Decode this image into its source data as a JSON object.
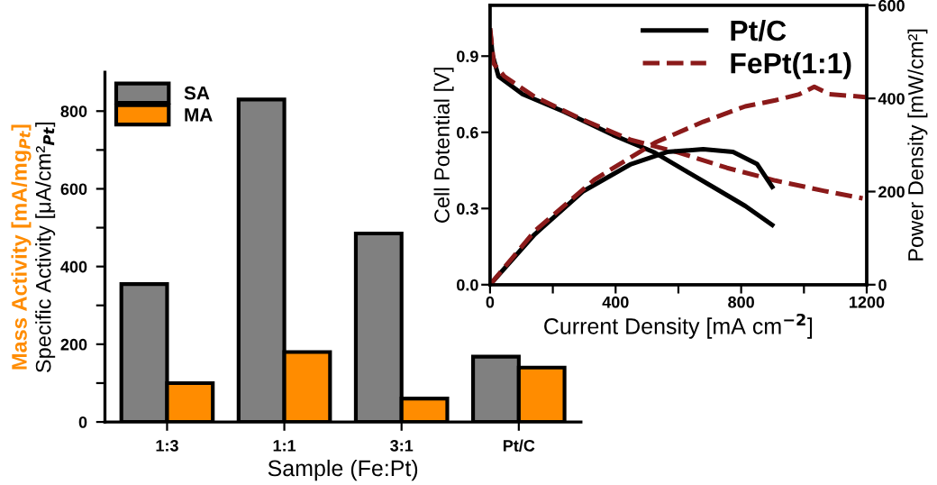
{
  "chart_data": [
    {
      "type": "bar",
      "xlabel": "Sample (Fe:Pt)",
      "ylabel": "Specific Activity [μA/cm²$_{Pt}$]",
      "y2label": "Mass Activity [mA/mg$_{Pt}$]",
      "categories": [
        "1:3",
        "1:1",
        "3:1",
        "Pt/C"
      ],
      "series": [
        {
          "name": "SA",
          "color": "#808080",
          "values": [
            355,
            830,
            485,
            168
          ]
        },
        {
          "name": "MA",
          "color": "#ff8c00",
          "values": [
            100,
            180,
            60,
            140
          ]
        }
      ],
      "ylim": [
        0,
        900
      ],
      "yticks": [
        0,
        {
          "value": 100,
          "label": null
        },
        200,
        {
          "value": 300,
          "label": null
        },
        400,
        {
          "value": 500,
          "label": null
        },
        600,
        {
          "value": 700,
          "label": null
        },
        800
      ],
      "grid": false,
      "legend": "top left"
    },
    {
      "type": "line",
      "xlabel": "Current Density [mA cm$^{−2}$]",
      "ylabel": "Cell Potential [V]",
      "y2label": "Power Density [mW/cm²]",
      "series": [
        {
          "name": "Pt/C",
          "color": "#000000",
          "line_style": "solid",
          "x": [
            0,
            8,
            27,
            104,
            238,
            391,
            525,
            621,
            717,
            813,
            899
          ],
          "values": [
            1.0,
            0.905,
            0.82,
            0.75,
            0.68,
            0.59,
            0.52,
            0.45,
            0.38,
            0.31,
            0.235
          ]
        },
        {
          "name": "FePt(1:1)",
          "color": "#8b1a1a",
          "line_style": "dashed",
          "x": [
            0,
            12,
            46,
            142,
            295,
            449,
            602,
            755,
            909,
            1062,
            1187
          ],
          "values": [
            1.01,
            0.87,
            0.82,
            0.74,
            0.65,
            0.57,
            0.52,
            0.46,
            0.41,
            0.37,
            0.34
          ]
        },
        {
          "color": "#000000",
          "line_style": "solid",
          "axis": "y2",
          "x": [
            0,
            142,
            295,
            449,
            564,
            679,
            774,
            851,
            899
          ],
          "values": [
            0,
            108,
            200,
            259,
            285,
            291,
            285,
            259,
            210
          ]
        },
        {
          "color": "#8b1a1a",
          "line_style": "dashed",
          "axis": "y2",
          "x": [
            0,
            142,
            333,
            525,
            679,
            813,
            909,
            985,
            1033,
            1081,
            1196
          ],
          "values": [
            0,
            115,
            226,
            305,
            350,
            383,
            396,
            409,
            425,
            409,
            403
          ]
        }
      ],
      "xlim": [
        0,
        1200
      ],
      "xticks": [
        0,
        {
          "value": 200,
          "label": null
        },
        400,
        {
          "value": 600,
          "label": null
        },
        800,
        {
          "value": 1000,
          "label": null
        },
        1200
      ],
      "ylim": [
        0,
        1.1
      ],
      "yticks": [
        {
          "value": 0,
          "label": "0.0"
        },
        0.3,
        0.6,
        0.9
      ],
      "y2lim": [
        0,
        600
      ],
      "y2ticks": [
        0,
        200,
        400,
        600
      ],
      "grid": false,
      "legend": "top right",
      "marker": "none"
    }
  ]
}
